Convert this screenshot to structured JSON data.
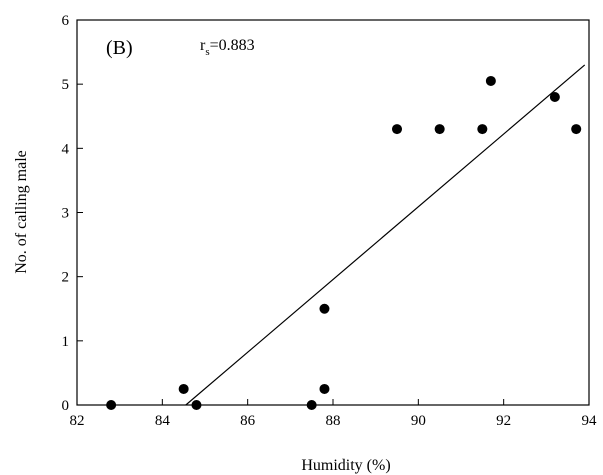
{
  "chart_data": {
    "type": "scatter",
    "panel_label": "(B)",
    "annotation": {
      "symbol": "r",
      "subscript": "s",
      "value": "=0.883"
    },
    "xlabel": "Humidity (%)",
    "ylabel": "No. of calling male",
    "xlim": [
      82,
      94
    ],
    "ylim": [
      0,
      6
    ],
    "xticks": [
      "82",
      "84",
      "86",
      "88",
      "90",
      "92",
      "94"
    ],
    "yticks": [
      "0",
      "1",
      "2",
      "3",
      "4",
      "5",
      "6"
    ],
    "grid": false,
    "points": [
      {
        "x": 82.8,
        "y": 0
      },
      {
        "x": 84.5,
        "y": 0.25
      },
      {
        "x": 84.8,
        "y": 0
      },
      {
        "x": 87.5,
        "y": 0
      },
      {
        "x": 87.8,
        "y": 1.5
      },
      {
        "x": 87.8,
        "y": 0.25
      },
      {
        "x": 89.5,
        "y": 4.3
      },
      {
        "x": 90.5,
        "y": 4.3
      },
      {
        "x": 91.5,
        "y": 4.3
      },
      {
        "x": 91.7,
        "y": 5.05
      },
      {
        "x": 93.2,
        "y": 4.8
      },
      {
        "x": 93.7,
        "y": 4.3
      }
    ],
    "fit_line": {
      "x": [
        84.55,
        93.9
      ],
      "y": [
        0,
        5.3
      ]
    },
    "colors": {
      "marker": "#000000",
      "line": "#000000",
      "axis": "#000000"
    }
  }
}
